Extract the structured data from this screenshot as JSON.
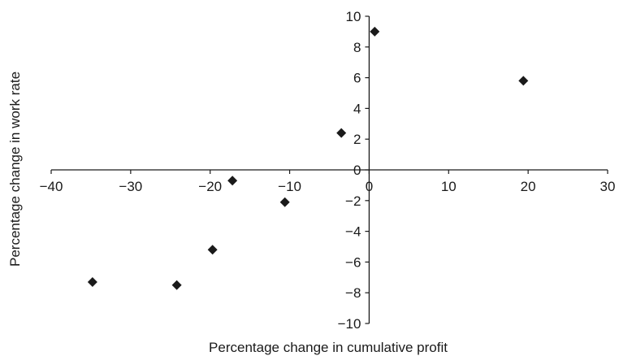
{
  "chart_data": {
    "type": "scatter",
    "title": "",
    "xlabel": "Percentage change in cumulative profit",
    "ylabel": "Percentage change in work rate",
    "xlim": [
      -40,
      30
    ],
    "ylim": [
      -10,
      10
    ],
    "x_ticks": [
      -40,
      -30,
      -20,
      -10,
      0,
      10,
      20,
      30
    ],
    "y_ticks": [
      -10,
      -8,
      -6,
      -4,
      -2,
      0,
      2,
      4,
      6,
      8,
      10
    ],
    "x_tick_labels": [
      "−40",
      "−30",
      "−20",
      "−10",
      "0",
      "10",
      "20",
      "30"
    ],
    "y_tick_labels": [
      "−10",
      "−8",
      "−6",
      "−4",
      "−2",
      "0",
      "2",
      "4",
      "6",
      "8",
      "10"
    ],
    "grid": false,
    "legend": "none",
    "marker": "diamond",
    "marker_color": "#1a1a1a",
    "series": [
      {
        "points": [
          {
            "x": 0.7,
            "y": 9.0
          },
          {
            "x": 19.4,
            "y": 5.8
          },
          {
            "x": -3.5,
            "y": 2.4
          },
          {
            "x": -17.2,
            "y": -0.7
          },
          {
            "x": -10.6,
            "y": -2.1
          },
          {
            "x": -19.7,
            "y": -5.2
          },
          {
            "x": -34.8,
            "y": -7.3
          },
          {
            "x": -24.2,
            "y": -7.5
          }
        ]
      }
    ]
  }
}
